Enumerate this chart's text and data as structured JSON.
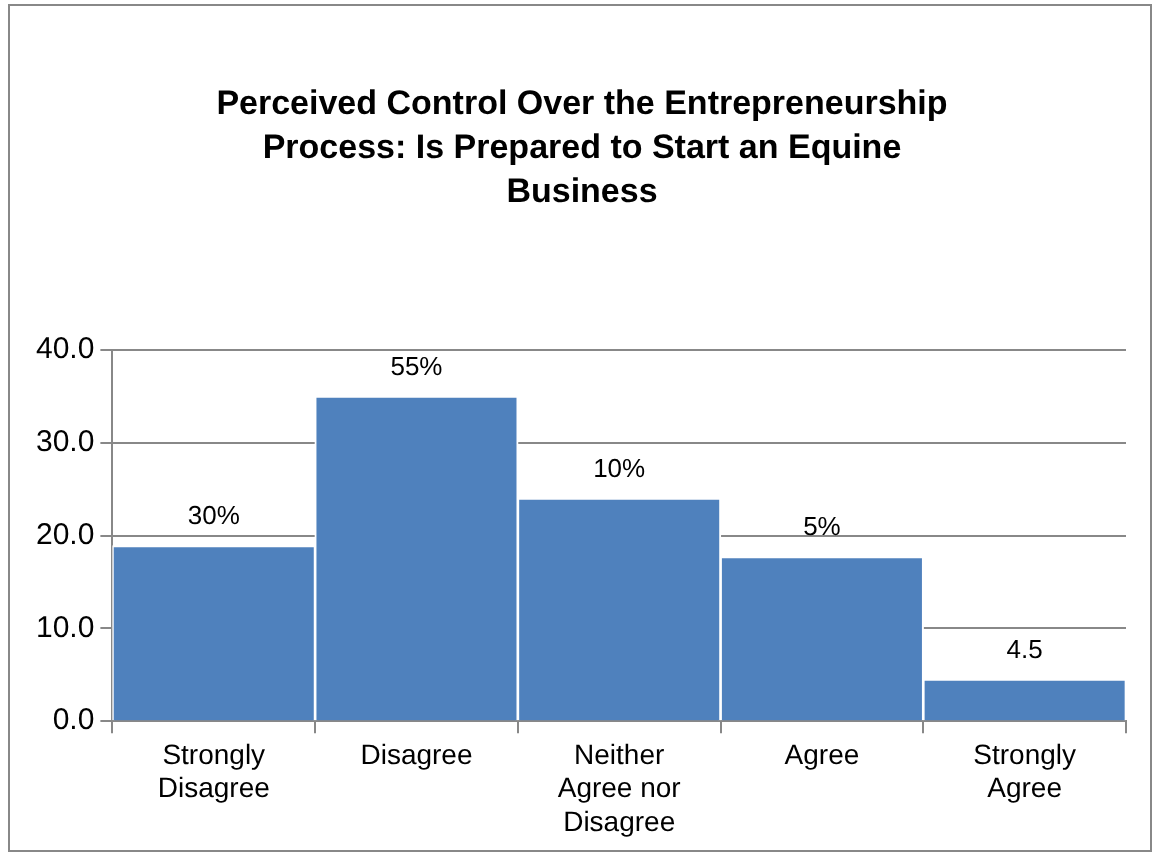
{
  "chart_data": {
    "type": "bar",
    "title": "Perceived Control Over the Entrepreneurship Process: Is Prepared to Start an Equine Business",
    "categories": [
      "Strongly Disagree",
      "Disagree",
      "Neither Agree nor Disagree",
      "Agree",
      "Strongly Agree"
    ],
    "values": [
      18.9,
      35,
      24,
      17.7,
      4.5
    ],
    "annotations": [
      {
        "text": "30%",
        "x": "Strongly Disagree",
        "y": 18.9
      },
      {
        "text": "55%",
        "x": "Disagree",
        "y": 35
      },
      {
        "text": "10%",
        "x": "Neither Agree nor Disagree",
        "y": 24
      },
      {
        "text": "5%",
        "x": "Agree",
        "y": 17.7
      }
    ],
    "value_labels": [
      null,
      null,
      null,
      null,
      "4.5"
    ],
    "color": "#4f81bd",
    "ylim": [
      0,
      40
    ],
    "yticks": [
      {
        "value": 0,
        "label": "0.0"
      },
      {
        "value": 10,
        "label": "10.0"
      },
      {
        "value": 20,
        "label": "20.0"
      },
      {
        "value": 30,
        "label": "30.0"
      },
      {
        "value": 40,
        "label": "40.0"
      }
    ],
    "grid": "y",
    "legend": false
  }
}
